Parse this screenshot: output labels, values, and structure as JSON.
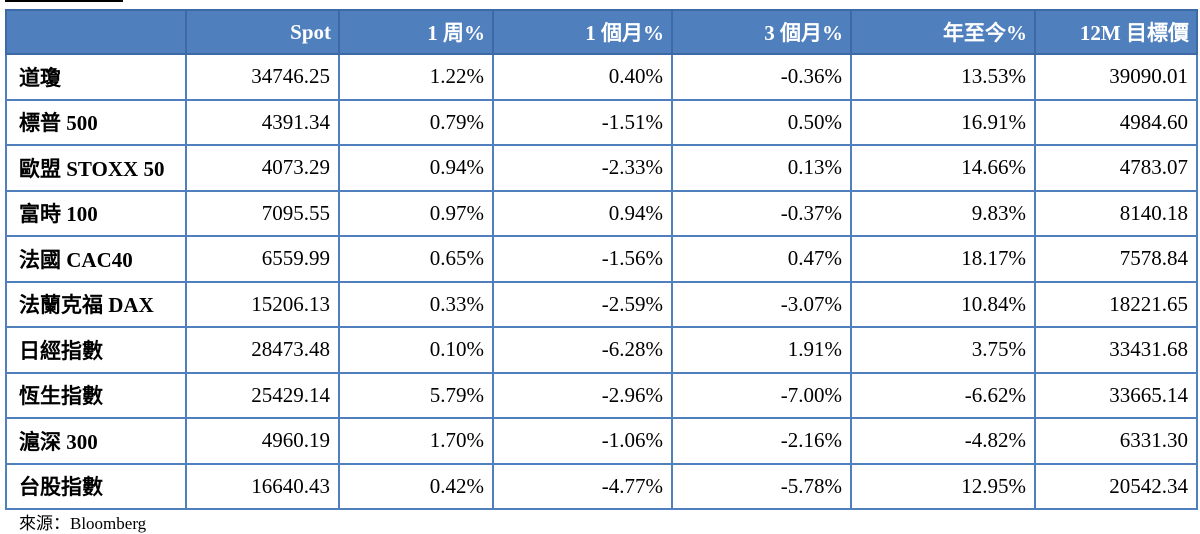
{
  "table": {
    "headers": [
      "",
      "Spot",
      "1 周%",
      "1 個月%",
      "3 個月%",
      "年至今%",
      "12M 目標價"
    ],
    "rows": [
      [
        "道瓊",
        "34746.25",
        "1.22%",
        "0.40%",
        "-0.36%",
        "13.53%",
        "39090.01"
      ],
      [
        "標普 500",
        "4391.34",
        "0.79%",
        "-1.51%",
        "0.50%",
        "16.91%",
        "4984.60"
      ],
      [
        "歐盟 STOXX 50",
        "4073.29",
        "0.94%",
        "-2.33%",
        "0.13%",
        "14.66%",
        "4783.07"
      ],
      [
        "富時 100",
        "7095.55",
        "0.97%",
        "0.94%",
        "-0.37%",
        "9.83%",
        "8140.18"
      ],
      [
        "法國 CAC40",
        "6559.99",
        "0.65%",
        "-1.56%",
        "0.47%",
        "18.17%",
        "7578.84"
      ],
      [
        "法蘭克福 DAX",
        "15206.13",
        "0.33%",
        "-2.59%",
        "-3.07%",
        "10.84%",
        "18221.65"
      ],
      [
        "日經指數",
        "28473.48",
        "0.10%",
        "-6.28%",
        "1.91%",
        "3.75%",
        "33431.68"
      ],
      [
        "恆生指數",
        "25429.14",
        "5.79%",
        "-2.96%",
        "-7.00%",
        "-6.62%",
        "33665.14"
      ],
      [
        "滬深 300",
        "4960.19",
        "1.70%",
        "-1.06%",
        "-2.16%",
        "-4.82%",
        "6331.30"
      ],
      [
        "台股指數",
        "16640.43",
        "0.42%",
        "-4.77%",
        "-5.78%",
        "12.95%",
        "20542.34"
      ]
    ]
  },
  "footer": {
    "source": "來源：Bloomberg"
  },
  "colors": {
    "header_bg": "#4f7fbd",
    "header_text": "#ffffff",
    "border": "#4f7fbd"
  }
}
